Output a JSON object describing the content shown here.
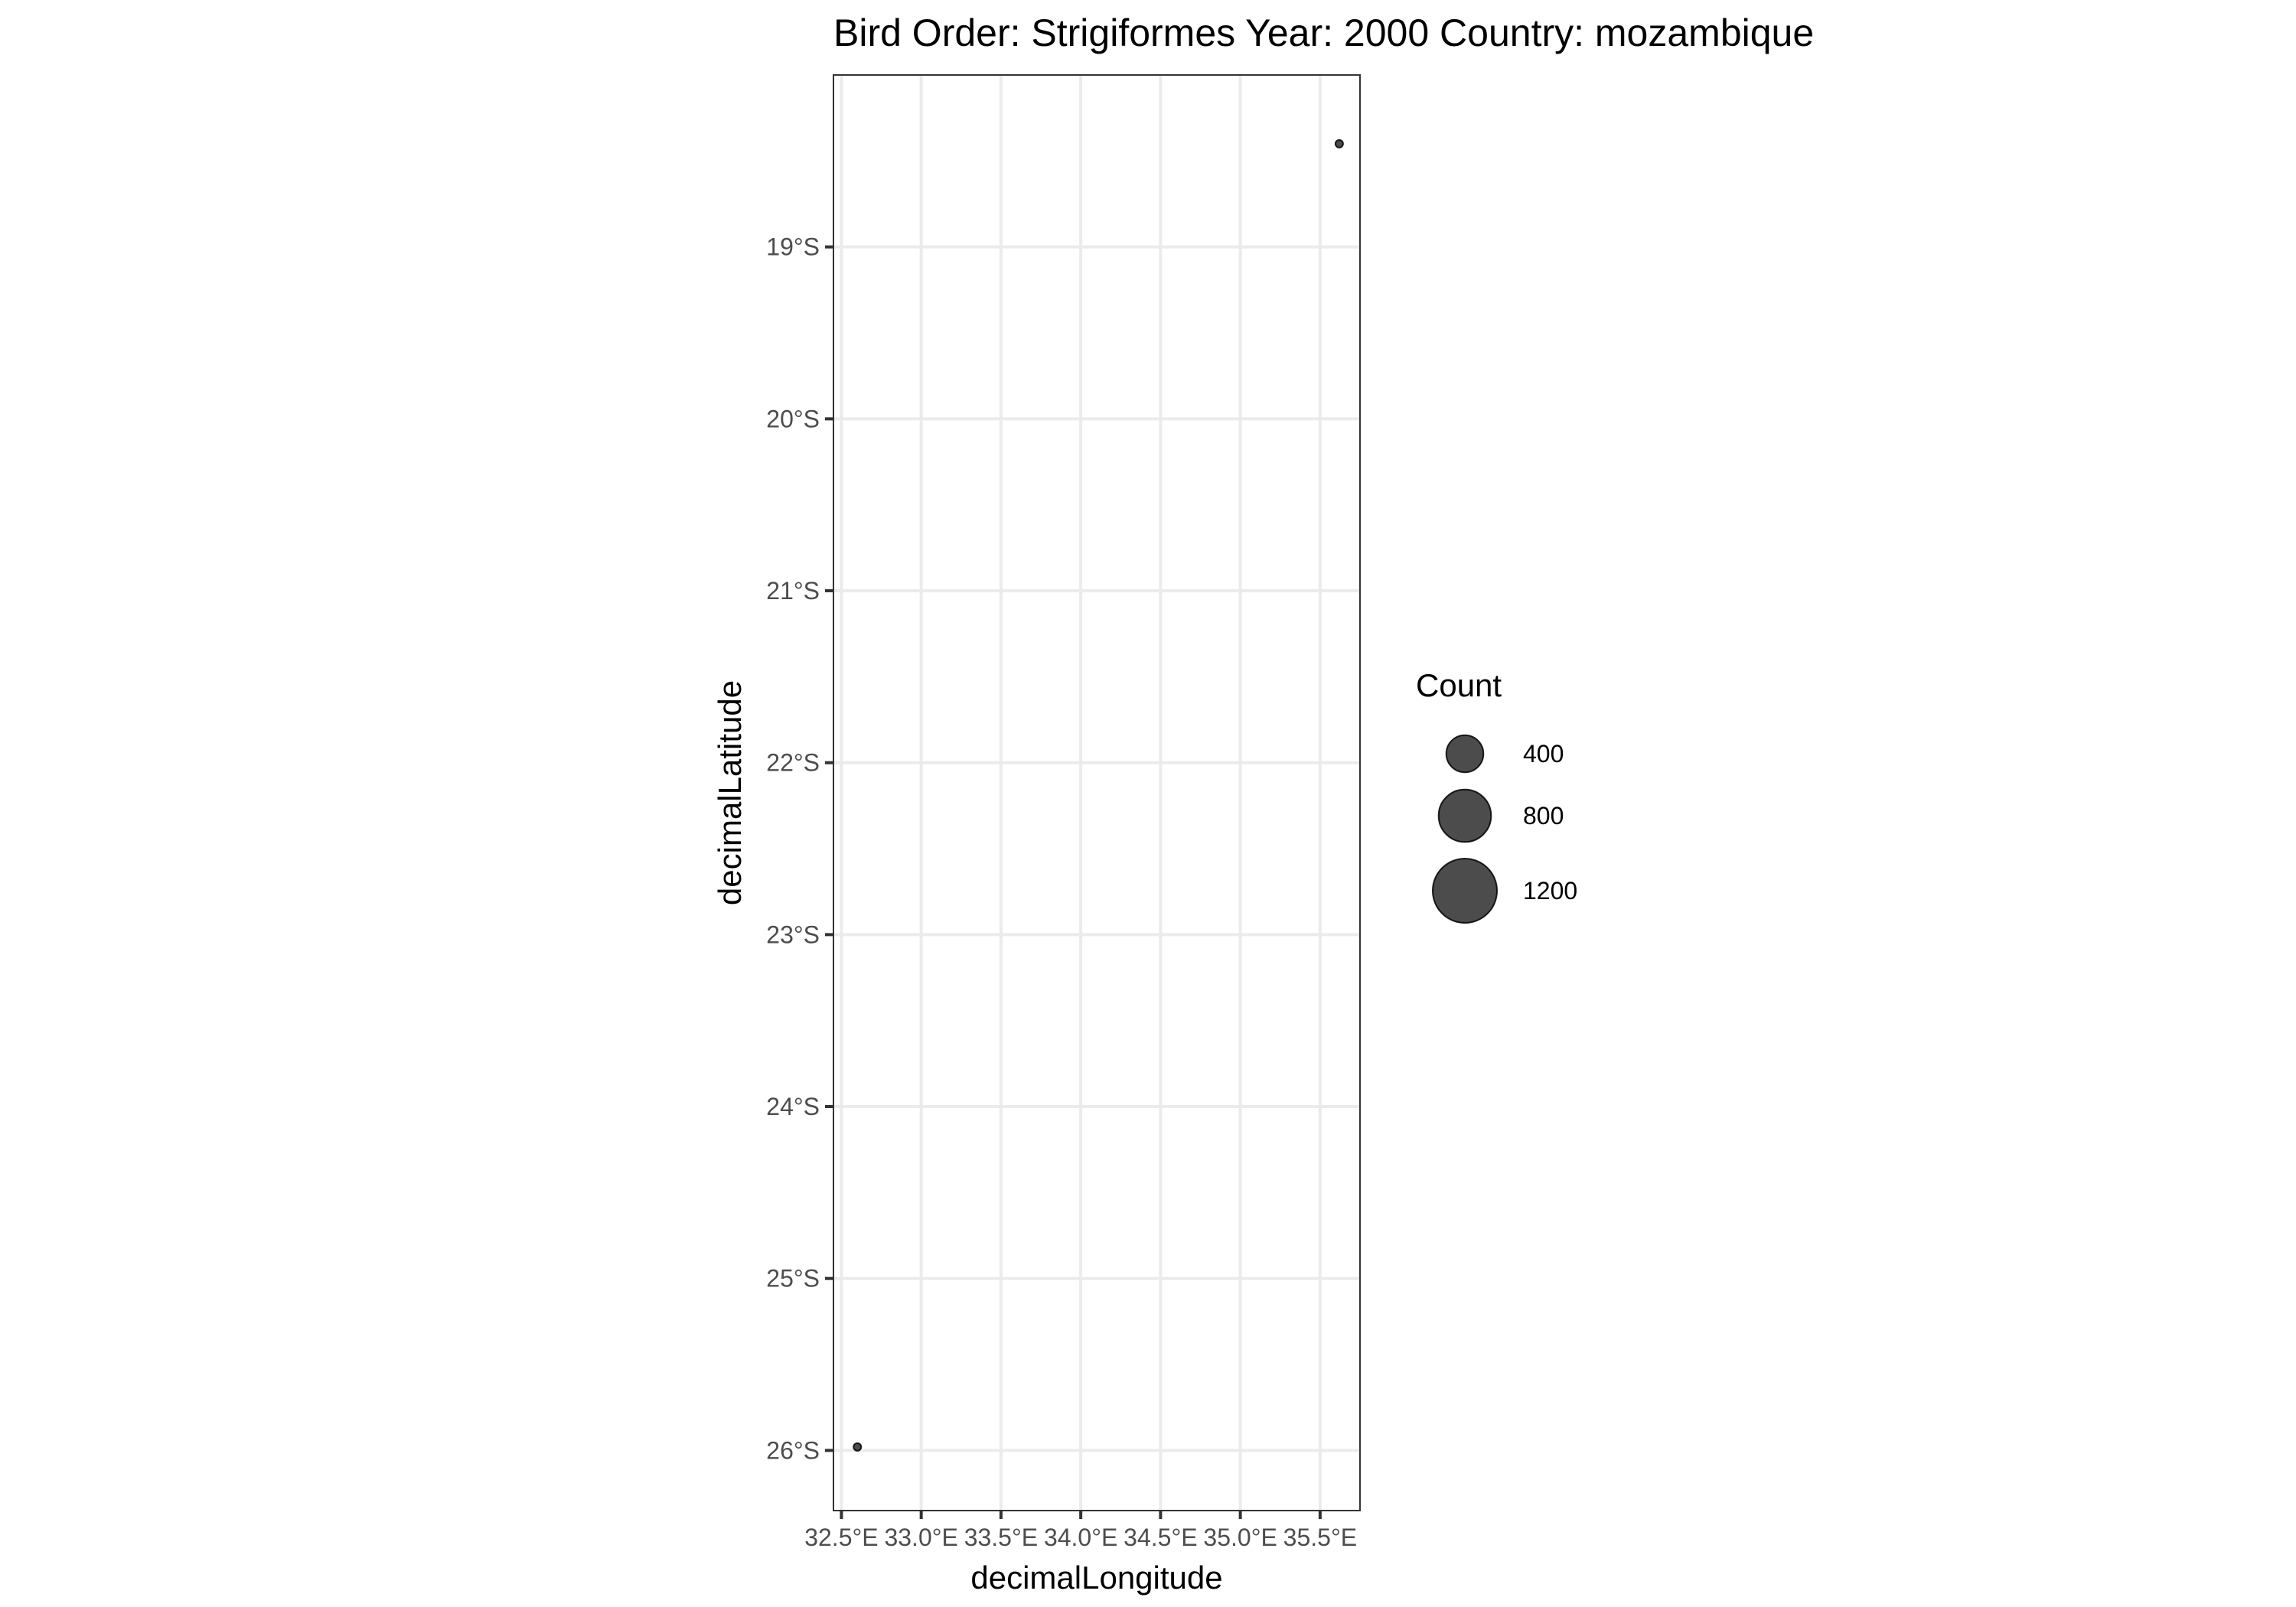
{
  "chart_data": {
    "type": "scatter",
    "title": "Bird Order: Strigiformes Year: 2000 Country: mozambique",
    "xlabel": "decimalLongitude",
    "ylabel": "decimalLatitude",
    "xlim": [
      32.45,
      35.75
    ],
    "ylim": [
      -26.35,
      -18.0
    ],
    "x_ticks": [
      {
        "value": 32.5,
        "label": "32.5°E"
      },
      {
        "value": 33.0,
        "label": "33.0°E"
      },
      {
        "value": 33.5,
        "label": "33.5°E"
      },
      {
        "value": 34.0,
        "label": "34.0°E"
      },
      {
        "value": 34.5,
        "label": "34.5°E"
      },
      {
        "value": 35.0,
        "label": "35.0°E"
      },
      {
        "value": 35.5,
        "label": "35.5°E"
      }
    ],
    "y_ticks": [
      {
        "value": -19,
        "label": "19°S"
      },
      {
        "value": -20,
        "label": "20°S"
      },
      {
        "value": -21,
        "label": "21°S"
      },
      {
        "value": -22,
        "label": "22°S"
      },
      {
        "value": -23,
        "label": "23°S"
      },
      {
        "value": -24,
        "label": "24°S"
      },
      {
        "value": -25,
        "label": "25°S"
      },
      {
        "value": -26,
        "label": "26°S"
      }
    ],
    "points": [
      {
        "x": 35.62,
        "y": -18.4,
        "count": 1
      },
      {
        "x": 32.6,
        "y": -25.98,
        "count": 1
      }
    ],
    "grid": true,
    "legend": {
      "title": "Count",
      "placement": "right",
      "entries": [
        {
          "value": 400,
          "label": "400"
        },
        {
          "value": 800,
          "label": "800"
        },
        {
          "value": 1200,
          "label": "1200"
        }
      ]
    },
    "colors": {
      "point": "#000000",
      "grid": "#ebebeb",
      "border": "#333333"
    }
  }
}
